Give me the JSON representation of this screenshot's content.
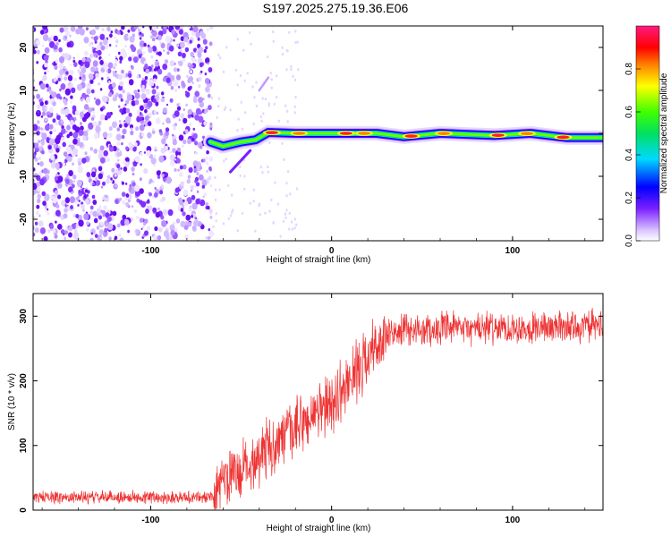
{
  "title": "S197.2025.275.19.36.E06",
  "chart_data": [
    {
      "type": "heatmap",
      "title": "S197.2025.275.19.36.E06",
      "xlabel": "Height of straight line (km)",
      "ylabel": "Frequency (Hz)",
      "xlim": [
        -165,
        150
      ],
      "ylim": [
        -25,
        25
      ],
      "x_ticks": [
        -100,
        0,
        100
      ],
      "y_ticks": [
        -20,
        -10,
        0,
        10,
        20
      ],
      "colorbar": {
        "label": "Normalized spectral amplitude",
        "range": [
          0.0,
          1.0
        ],
        "ticks": [
          "0.0",
          "0.2",
          "0.4",
          "0.6",
          "0.8"
        ]
      },
      "noise_region_x": [
        -165,
        -67
      ],
      "signal_track": [
        {
          "x": -67,
          "y": -2.0
        },
        {
          "x": -60,
          "y": -3.0
        },
        {
          "x": -50,
          "y": -2.0
        },
        {
          "x": -42,
          "y": -1.5
        },
        {
          "x": -35,
          "y": 0.2
        },
        {
          "x": -20,
          "y": 0.0
        },
        {
          "x": 0,
          "y": 0.0
        },
        {
          "x": 25,
          "y": 0.0
        },
        {
          "x": 40,
          "y": -0.8
        },
        {
          "x": 60,
          "y": 0.0
        },
        {
          "x": 90,
          "y": -0.5
        },
        {
          "x": 110,
          "y": 0.0
        },
        {
          "x": 130,
          "y": -1.0
        },
        {
          "x": 150,
          "y": -1.0
        }
      ]
    },
    {
      "type": "line",
      "xlabel": "Height of straight line (km)",
      "ylabel": "SNR (10 * v/v)",
      "xlim": [
        -165,
        150
      ],
      "ylim": [
        0,
        335
      ],
      "x_ticks": [
        -100,
        0,
        100
      ],
      "y_ticks": [
        0,
        100,
        200,
        300
      ],
      "series": [
        {
          "name": "SNR",
          "color": "#ee3333",
          "trend": [
            {
              "x": -165,
              "y": 20
            },
            {
              "x": -65,
              "y": 20
            },
            {
              "x": -60,
              "y": 45
            },
            {
              "x": -50,
              "y": 60
            },
            {
              "x": -40,
              "y": 85
            },
            {
              "x": -30,
              "y": 105
            },
            {
              "x": -20,
              "y": 125
            },
            {
              "x": -10,
              "y": 145
            },
            {
              "x": 0,
              "y": 165
            },
            {
              "x": 10,
              "y": 200
            },
            {
              "x": 20,
              "y": 240
            },
            {
              "x": 30,
              "y": 268
            },
            {
              "x": 40,
              "y": 278
            },
            {
              "x": 60,
              "y": 280
            },
            {
              "x": 100,
              "y": 282
            },
            {
              "x": 150,
              "y": 285
            }
          ]
        }
      ]
    }
  ]
}
